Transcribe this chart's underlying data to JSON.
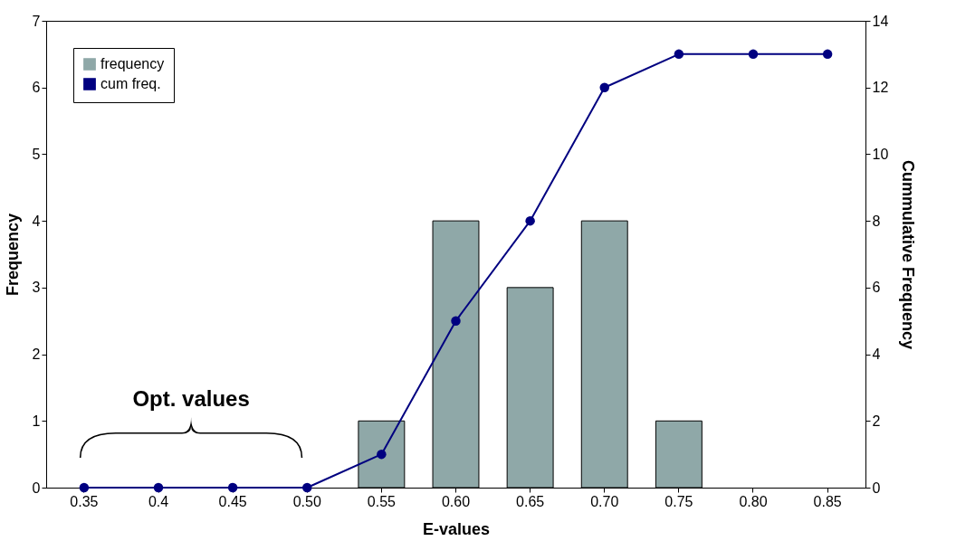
{
  "chart_data": {
    "type": "bar",
    "xlabel": "E-values",
    "ylabel": "Frequency",
    "y2label": "Cummulative Frequency",
    "categories": [
      "0.35",
      "0.4",
      "0.45",
      "0.50",
      "0.55",
      "0.60",
      "0.65",
      "0.70",
      "0.75",
      "0.80",
      "0.85"
    ],
    "series": [
      {
        "name": "frequency",
        "color": "#8fa8a8",
        "values": [
          0,
          0,
          0,
          0,
          1,
          4,
          3,
          4,
          1,
          0,
          0
        ]
      },
      {
        "name": "cum freq.",
        "type": "line",
        "axis": "y2",
        "color": "#000080",
        "values": [
          0,
          0,
          0,
          0,
          1,
          5,
          8,
          12,
          13,
          13,
          13
        ]
      }
    ],
    "ylim": [
      0,
      7
    ],
    "yticks": [
      0,
      1,
      2,
      3,
      4,
      5,
      6,
      7
    ],
    "y2lim": [
      0,
      14
    ],
    "y2ticks": [
      0,
      2,
      4,
      6,
      8,
      10,
      12,
      14
    ],
    "legend": "top left",
    "marker": "circle",
    "grid": false,
    "annotations": [
      "Opt. values"
    ]
  }
}
